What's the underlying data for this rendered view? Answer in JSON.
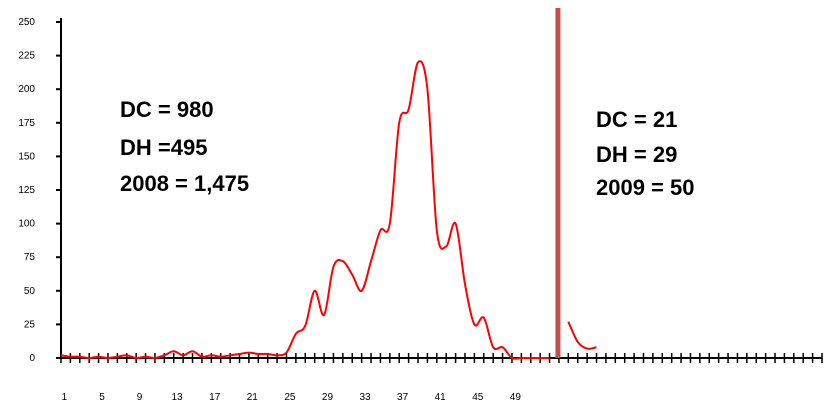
{
  "chart_data": {
    "type": "line",
    "title": "",
    "xlabel": "",
    "ylabel": "",
    "ylim": [
      0,
      250
    ],
    "xlim": [
      0,
      81
    ],
    "y_ticks": [
      0,
      25,
      50,
      75,
      100,
      125,
      150,
      175,
      200,
      225,
      250
    ],
    "x_tick_labels": [
      "1",
      "5",
      "9",
      "13",
      "17",
      "21",
      "25",
      "29",
      "33",
      "37",
      "41",
      "45",
      "49"
    ],
    "x_tick_label_positions": [
      1,
      5,
      9,
      13,
      17,
      21,
      25,
      29,
      33,
      37,
      41,
      45,
      49
    ],
    "x_minor_ticks": 81,
    "grid": false,
    "legend": "none",
    "line_color": "#ff0000",
    "divider_color": "#c0504d",
    "divider_x": 53,
    "series": [
      {
        "x": [
          0,
          1,
          2,
          3,
          4,
          5,
          6,
          7,
          8,
          9,
          10,
          11,
          12,
          13,
          14,
          15,
          16,
          17,
          18,
          19,
          20,
          21,
          22,
          23,
          24,
          25,
          26,
          27,
          28,
          29,
          30,
          31,
          32,
          33,
          34,
          35,
          36,
          37,
          38,
          39,
          40,
          41,
          42,
          43,
          44,
          45,
          46,
          47,
          48,
          49,
          50,
          51,
          52
        ],
        "values": [
          2,
          1,
          1,
          0,
          1,
          0,
          1,
          2,
          0,
          1,
          0,
          2,
          5,
          2,
          5,
          1,
          2,
          1,
          2,
          3,
          4,
          3,
          3,
          2,
          4,
          18,
          24,
          50,
          32,
          68,
          72,
          62,
          50,
          72,
          95,
          100,
          175,
          185,
          220,
          200,
          95,
          83,
          100,
          55,
          25,
          30,
          8,
          8,
          0,
          0,
          0,
          0,
          0
        ]
      },
      {
        "x": [
          54,
          55,
          56,
          57
        ],
        "values": [
          27,
          12,
          7,
          8
        ]
      }
    ],
    "annotations": [
      {
        "lines": [
          "DC = 980",
          "DH =495",
          "2008 = 1,475"
        ]
      },
      {
        "lines": [
          "DC = 21",
          "DH = 29",
          "2009 = 50"
        ]
      }
    ]
  }
}
